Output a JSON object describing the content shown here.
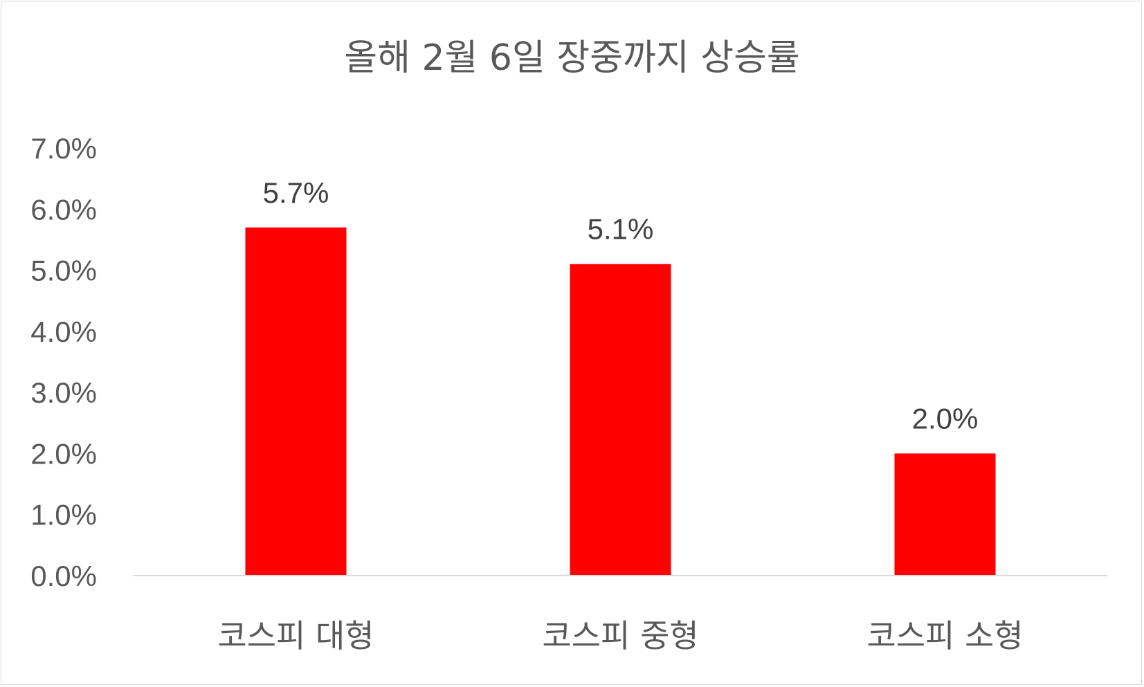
{
  "chart_data": {
    "type": "bar",
    "title": "올해 2월 6일 장중까지 상승률",
    "categories": [
      "코스피 대형",
      "코스피 중형",
      "코스피 소형"
    ],
    "values": [
      5.7,
      5.1,
      2.0
    ],
    "data_labels": [
      "5.7%",
      "5.1%",
      "2.0%"
    ],
    "ylim": [
      0,
      7
    ],
    "yticks": [
      0,
      1,
      2,
      3,
      4,
      5,
      6,
      7
    ],
    "ytick_labels": [
      "0.0%",
      "1.0%",
      "2.0%",
      "3.0%",
      "4.0%",
      "5.0%",
      "6.0%",
      "7.0%"
    ],
    "xlabel": "",
    "ylabel": "",
    "grid": false,
    "legend": "none",
    "bar_color": "#ff0000"
  }
}
